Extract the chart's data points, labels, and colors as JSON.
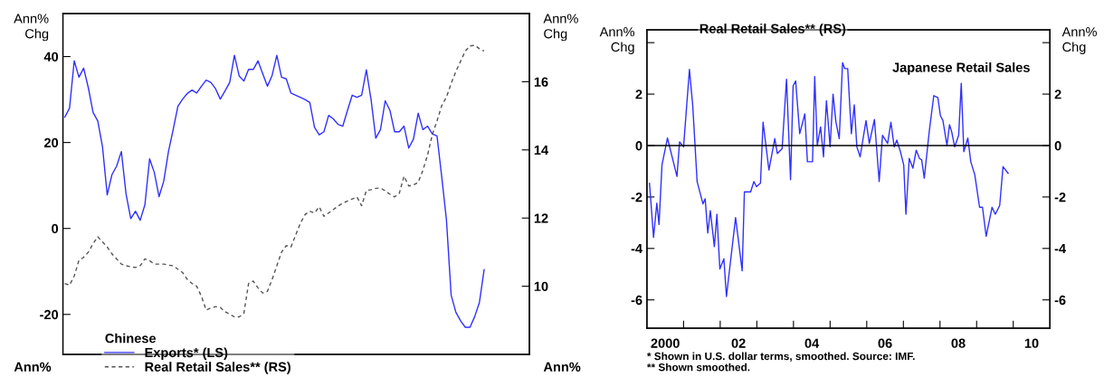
{
  "chart_data": [
    {
      "type": "line",
      "categories": [
        null,
        null,
        null,
        null,
        null,
        null,
        null,
        null,
        null,
        null,
        null,
        null,
        null,
        null,
        null,
        null,
        null,
        null,
        null,
        null,
        null,
        null,
        null,
        null,
        null,
        null,
        null,
        null,
        null,
        null,
        null,
        null,
        null,
        null,
        null,
        null,
        null,
        null,
        null,
        null,
        null,
        null,
        null,
        null,
        null,
        null,
        null,
        null,
        null,
        null,
        null,
        null,
        null,
        null,
        null,
        null,
        null,
        null,
        null,
        null,
        null,
        null,
        null,
        null,
        null,
        null,
        null,
        null,
        null,
        null,
        null,
        null,
        null,
        null,
        null,
        null,
        null,
        null,
        null,
        null,
        null,
        null,
        null,
        null,
        null,
        null,
        null,
        null,
        null,
        null,
        null,
        null,
        null,
        null,
        null,
        null,
        null,
        null,
        null
      ],
      "ylabel": "Ann%\nChg",
      "y2label": "Ann%\nChg",
      "ylim": [
        -29.3,
        50
      ],
      "yticks": [
        -20,
        0,
        20,
        40
      ],
      "y2lim": [
        8,
        18
      ],
      "y2ticks": [
        10,
        12,
        14,
        16
      ],
      "tick_labels": "y",
      "legend": "bottom left",
      "legend_title": "Chinese",
      "series": [
        {
          "name": "Exports* (LS)",
          "color": "#3030ff",
          "line_style": "solid",
          "values": [
            25.9,
            28,
            39,
            35.2,
            37.3,
            32.7,
            27,
            25,
            19,
            7.8,
            12.5,
            14.5,
            17.9,
            8,
            2.3,
            4,
            1.9,
            5.5,
            16.2,
            13,
            7.4,
            11,
            17.9,
            23,
            28.4,
            30.1,
            31.4,
            32.2,
            31.5,
            33.1,
            34.5,
            34,
            32.5,
            30.1,
            32,
            34,
            40.3,
            35.5,
            34.3,
            37,
            37,
            39,
            36,
            33.1,
            35.6,
            40.3,
            35.2,
            34.8,
            31.5,
            31,
            30.5,
            30,
            29.3,
            23.5,
            21.8,
            22.5,
            26.3,
            25.5,
            24.2,
            23.8,
            27.5,
            31,
            30.5,
            31,
            36.9,
            30,
            21,
            23,
            29.7,
            27.5,
            22.5,
            22.5,
            23.8,
            18.7,
            20.8,
            26.8,
            23,
            23.8,
            22,
            21.5,
            12,
            2,
            -15.5,
            -19.5,
            -21.5,
            -23,
            -23,
            -20.5,
            -17.2,
            -9.6,
            null,
            null,
            null,
            null,
            null,
            null,
            null,
            null,
            null
          ]
        },
        {
          "name": "Real Retail Sales** (RS)",
          "color": "#555555",
          "line_style": "dashed",
          "axis": "y2",
          "values": [
            10.08,
            10.03,
            10.3,
            10.76,
            10.85,
            11.0,
            11.25,
            11.45,
            11.3,
            11.15,
            10.95,
            10.8,
            10.65,
            10.6,
            10.57,
            10.55,
            10.6,
            10.8,
            10.75,
            10.65,
            10.65,
            10.65,
            10.62,
            10.6,
            10.5,
            10.4,
            10.2,
            10.08,
            10.0,
            9.7,
            9.3,
            9.36,
            9.4,
            9.38,
            9.25,
            9.18,
            9.1,
            9.1,
            9.2,
            10.08,
            10.15,
            9.95,
            9.8,
            9.85,
            10.2,
            10.6,
            11.0,
            11.19,
            11.15,
            11.5,
            11.85,
            12.1,
            12.2,
            12.15,
            12.33,
            12.05,
            12.15,
            12.25,
            12.35,
            12.44,
            12.5,
            12.56,
            12.62,
            12.36,
            12.81,
            12.83,
            12.87,
            12.88,
            12.8,
            12.7,
            12.62,
            12.73,
            13.23,
            12.94,
            12.97,
            13.05,
            13.4,
            13.85,
            14.45,
            14.85,
            15.3,
            15.55,
            15.95,
            16.3,
            16.6,
            16.9,
            17.05,
            17.07,
            16.97,
            16.9,
            null,
            null,
            null,
            null,
            null,
            null,
            null,
            null,
            null
          ]
        }
      ],
      "annotations": [
        "Ann%",
        "Ann%"
      ]
    },
    {
      "type": "line",
      "title": "Japanese Retail Sales",
      "ylabel": "Ann%\nChg",
      "y2label": "Ann%\nChg",
      "xlim": [
        1999.5,
        2010.5
      ],
      "xticks": [
        {
          "value": 2000,
          "label": "2000"
        },
        {
          "value": 2000.5,
          "label": null
        },
        {
          "value": 2001.5,
          "label": null
        },
        {
          "value": 2002,
          "label": "02"
        },
        {
          "value": 2002.5,
          "label": null
        },
        {
          "value": 2003.5,
          "label": null
        },
        {
          "value": 2004,
          "label": "04"
        },
        {
          "value": 2004.5,
          "label": null
        },
        {
          "value": 2005.5,
          "label": null
        },
        {
          "value": 2006,
          "label": "06"
        },
        {
          "value": 2006.5,
          "label": null
        },
        {
          "value": 2007.5,
          "label": null
        },
        {
          "value": 2008,
          "label": "08"
        },
        {
          "value": 2008.5,
          "label": null
        },
        {
          "value": 2009.5,
          "label": null
        },
        {
          "value": 2010,
          "label": "10"
        }
      ],
      "ylim": [
        -7.1,
        4.5
      ],
      "yticks": [
        -6,
        -4,
        -2,
        0,
        2,
        {
          "value": 4,
          "label": null
        }
      ],
      "y2lim": [
        -7.1,
        4.5
      ],
      "y2ticks": [
        -6,
        -4,
        -2,
        0,
        2,
        {
          "value": 4,
          "label": null
        }
      ],
      "ref_lines": [
        {
          "axis": "y",
          "value": 0,
          "color": "#000000"
        }
      ],
      "series": [
        {
          "color": "#3030ff",
          "line_style": "solid",
          "x": [
            1999.57,
            1999.68,
            1999.77,
            1999.83,
            1999.91,
            2000.06,
            2000.32,
            2000.39,
            2000.5,
            2000.66,
            2000.75,
            2000.87,
            2001.03,
            2001.09,
            2001.16,
            2001.23,
            2001.34,
            2001.41,
            2001.49,
            2001.6,
            2001.67,
            2001.92,
            2002.1,
            2002.16,
            2002.33,
            2002.42,
            2002.49,
            2002.6,
            2002.67,
            2002.83,
            2002.99,
            2003.06,
            2003.19,
            2003.31,
            2003.42,
            2003.49,
            2003.56,
            2003.67,
            2003.81,
            2003.88,
            2004.02,
            2004.08,
            2004.15,
            2004.24,
            2004.32,
            2004.4,
            2004.5,
            2004.58,
            2004.66,
            2004.75,
            2004.84,
            2004.9,
            2004.98,
            2005.08,
            2005.16,
            2005.23,
            2005.32,
            2005.48,
            2005.57,
            2005.71,
            2005.84,
            2005.93,
            2006.07,
            2006.16,
            2006.25,
            2006.32,
            2006.42,
            2006.51,
            2006.57,
            2006.66,
            2006.76,
            2006.85,
            2006.94,
            2007.0,
            2007.07,
            2007.21,
            2007.33,
            2007.44,
            2007.51,
            2007.58,
            2007.69,
            2007.76,
            2007.82,
            2007.9,
            2008.01,
            2008.08,
            2008.15,
            2008.26,
            2008.34,
            2008.45,
            2008.58,
            2008.66,
            2008.76,
            2008.92,
            2009.01,
            2009.13,
            2009.22,
            2009.36
          ],
          "values": [
            -1.47,
            -3.57,
            -2.24,
            -3.07,
            -0.76,
            0.29,
            -1.2,
            0.14,
            -0.05,
            2.96,
            1.55,
            -1.4,
            -2.27,
            -2.07,
            -3.4,
            -2.53,
            -3.93,
            -2.67,
            -4.8,
            -4.4,
            -5.87,
            -2.8,
            -4.87,
            -1.8,
            -1.8,
            -1.4,
            -1.6,
            -1.46,
            0.91,
            -0.95,
            0.27,
            -0.31,
            -0.12,
            2.58,
            -1.33,
            2.32,
            2.51,
            0.46,
            1.23,
            -0.63,
            -0.63,
            2.68,
            0,
            0.72,
            -0.44,
            1.74,
            -0.05,
            2.0,
            0.91,
            0.27,
            3.22,
            2.99,
            2.99,
            0.46,
            1.58,
            -0.05,
            -0.44,
            0.97,
            0.08,
            1.01,
            -1.4,
            0.4,
            0.08,
            0.91,
            -0.05,
            0.21,
            -0.24,
            -0.76,
            -2.67,
            -0.5,
            -0.88,
            -0.18,
            -0.5,
            -0.56,
            -1.27,
            0.59,
            1.94,
            1.87,
            1.17,
            0.97,
            0,
            0.81,
            0.53,
            -0.05,
            0.4,
            2.42,
            -0.24,
            0.29,
            -0.63,
            -1.14,
            -2.4,
            -2.4,
            -3.53,
            -2.4,
            -2.67,
            -2.33,
            -0.82,
            -1.08
          ]
        }
      ],
      "annotations": [
        "Real Retail Sales** (RS)",
        "* Shown in U.S. dollar terms, smoothed. Source: IMF.",
        "** Shown smoothed."
      ]
    }
  ]
}
